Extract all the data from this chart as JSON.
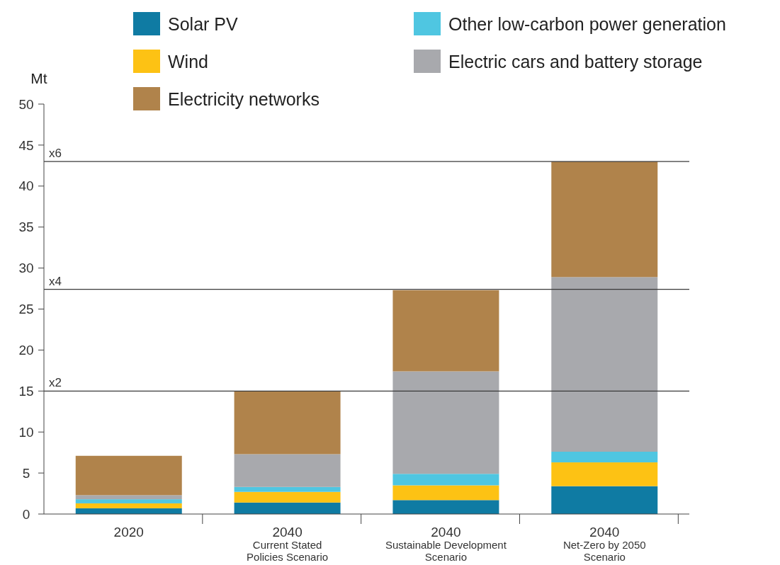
{
  "chart_data": {
    "type": "bar",
    "stacked": true,
    "ylabel": "Mt",
    "categories": [
      "2020",
      "2040\nCurrent Stated\nPolicies Scenario",
      "2040\nSustainable Development\nScenario",
      "2040\nNet-Zero by 2050\nScenario"
    ],
    "series": [
      {
        "name": "Solar PV",
        "color": "#0f7ba3",
        "values": [
          0.7,
          1.4,
          1.7,
          3.4
        ]
      },
      {
        "name": "Wind",
        "color": "#fdc214",
        "values": [
          0.6,
          1.3,
          1.8,
          2.9
        ]
      },
      {
        "name": "Other low-carbon power generation",
        "color": "#4fc6e1",
        "values": [
          0.5,
          0.6,
          1.4,
          1.3
        ]
      },
      {
        "name": "Electric cars and battery storage",
        "color": "#a8a9ad",
        "values": [
          0.5,
          4.0,
          12.5,
          21.3
        ]
      },
      {
        "name": "Electricity networks",
        "color": "#b0834b",
        "values": [
          4.8,
          7.7,
          9.9,
          14.1
        ]
      }
    ],
    "ylim": [
      0,
      50
    ],
    "yticks": [
      0,
      5,
      10,
      15,
      20,
      25,
      30,
      35,
      40,
      45,
      50
    ],
    "ref_lines": [
      {
        "axis": "y",
        "value": 15.0,
        "label": "x2",
        "color": "#3a3a3a"
      },
      {
        "axis": "y",
        "value": 27.4,
        "label": "x4",
        "color": "#3a3a3a"
      },
      {
        "axis": "y",
        "value": 43.0,
        "label": "x6",
        "color": "#3a3a3a"
      }
    ],
    "legend": "top"
  }
}
